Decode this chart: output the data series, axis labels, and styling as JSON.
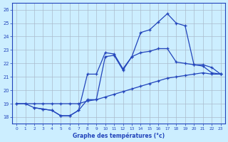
{
  "title": "Graphe des températures (°c)",
  "background_color": "#cceeff",
  "grid_color": "#aabbcc",
  "line_color": "#2244bb",
  "xlim": [
    -0.5,
    23.5
  ],
  "ylim": [
    17.5,
    26.5
  ],
  "xticks": [
    0,
    1,
    2,
    3,
    4,
    5,
    6,
    7,
    8,
    9,
    10,
    11,
    12,
    13,
    14,
    15,
    16,
    17,
    18,
    19,
    20,
    21,
    22,
    23
  ],
  "yticks": [
    18,
    19,
    20,
    21,
    22,
    23,
    24,
    25,
    26
  ],
  "line1_x": [
    0,
    1,
    2,
    3,
    4,
    5,
    6,
    7,
    8,
    9,
    10,
    11,
    12,
    13,
    14,
    15,
    16,
    17,
    18,
    19,
    20,
    21,
    22,
    23
  ],
  "line1_y": [
    19.0,
    19.0,
    19.0,
    19.0,
    19.0,
    19.0,
    19.0,
    19.0,
    19.2,
    19.3,
    19.5,
    19.7,
    19.9,
    20.1,
    20.3,
    20.5,
    20.7,
    20.9,
    21.0,
    21.1,
    21.2,
    21.3,
    21.2,
    21.2
  ],
  "line2_x": [
    0,
    1,
    2,
    3,
    4,
    5,
    6,
    7,
    8,
    9,
    10,
    11,
    12,
    13,
    14,
    15,
    16,
    17,
    18,
    19,
    20,
    21,
    22,
    23
  ],
  "line2_y": [
    19.0,
    19.0,
    18.7,
    18.6,
    18.5,
    18.1,
    18.1,
    18.5,
    19.3,
    19.3,
    22.5,
    22.6,
    21.5,
    22.5,
    24.3,
    24.5,
    25.1,
    25.7,
    25.0,
    24.8,
    21.9,
    21.8,
    21.3,
    21.2
  ],
  "line3_x": [
    2,
    3,
    4,
    5,
    6,
    7,
    8,
    9,
    10,
    11,
    12,
    13,
    14,
    15,
    16,
    17,
    18,
    19,
    20,
    21,
    22,
    23
  ],
  "line3_y": [
    18.7,
    18.6,
    18.5,
    18.1,
    18.1,
    18.5,
    21.2,
    21.2,
    22.8,
    22.7,
    21.6,
    22.5,
    22.8,
    22.9,
    23.1,
    23.1,
    22.1,
    22.0,
    21.9,
    21.9,
    21.7,
    21.2
  ]
}
